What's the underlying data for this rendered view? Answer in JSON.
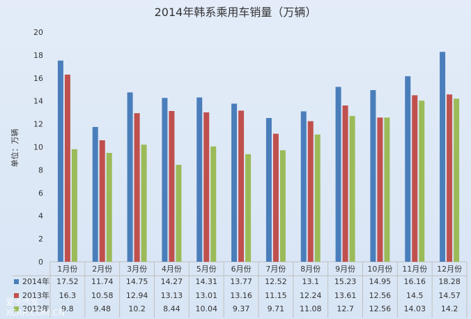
{
  "chart_data": {
    "type": "bar",
    "title": "2014年韩系乘用车销量（万辆）",
    "ylabel": "单位：万辆",
    "xlabel": "",
    "ylim": [
      0,
      20
    ],
    "yticks": [
      0,
      2,
      4,
      6,
      8,
      10,
      12,
      14,
      16,
      18,
      20
    ],
    "grid": false,
    "legend": "data-table-left",
    "categories": [
      "1月份",
      "2月份",
      "3月份",
      "4月份",
      "5月份",
      "6月份",
      "7月份",
      "8月份",
      "9月份",
      "10月份",
      "11月份",
      "12月份"
    ],
    "series": [
      {
        "name": "2014年",
        "color": "#4a7ebb",
        "values": [
          17.52,
          11.74,
          14.75,
          14.27,
          14.31,
          13.77,
          12.52,
          13.1,
          15.23,
          14.95,
          16.16,
          18.28
        ]
      },
      {
        "name": "2013年",
        "color": "#c0504d",
        "values": [
          16.3,
          10.58,
          12.94,
          13.13,
          13.01,
          13.16,
          11.15,
          12.24,
          13.61,
          12.56,
          14.5,
          14.57
        ]
      },
      {
        "name": "2012年",
        "color": "#9bbb59",
        "values": [
          9.8,
          9.48,
          10.2,
          8.44,
          10.04,
          9.37,
          9.71,
          11.08,
          12.7,
          12.56,
          14.03,
          14.2
        ]
      }
    ]
  },
  "watermark": {
    "line1": "爱卡汽车",
    "line2": "XCAR.COM.CN"
  }
}
